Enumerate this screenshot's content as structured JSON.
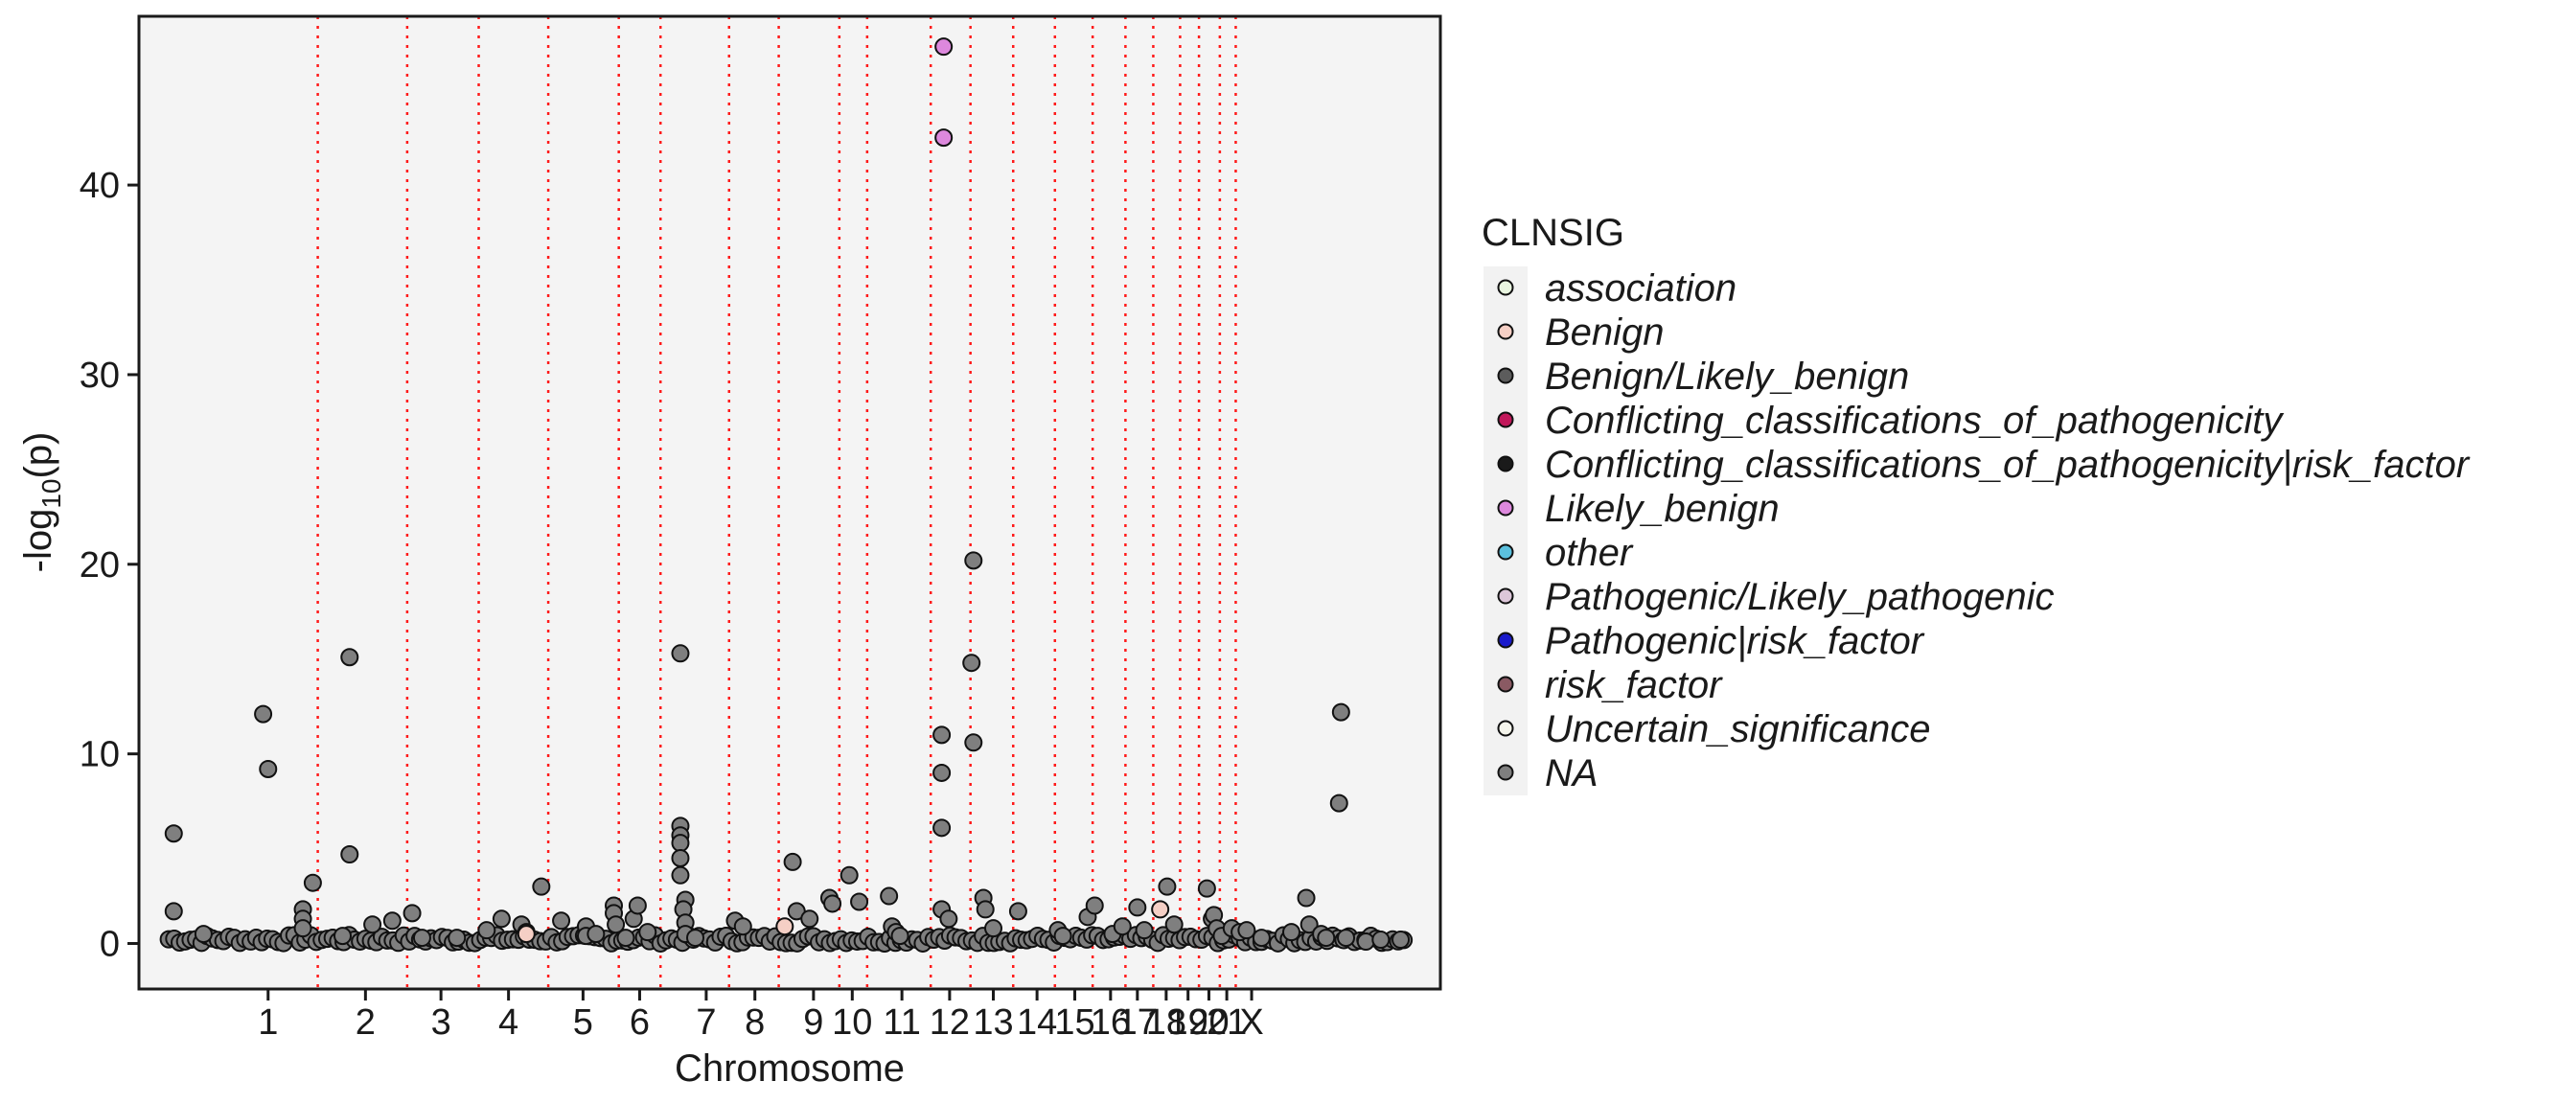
{
  "chart_data": {
    "type": "scatter",
    "title": "",
    "xlabel": "Chromosome",
    "ylabel_main": "-log",
    "ylabel_sub": "10",
    "ylabel_tail": "(p)",
    "ylim": [
      -2.4,
      48.9
    ],
    "yticks": [
      0,
      10,
      20,
      30,
      40
    ],
    "grid": false,
    "legend_position": "right",
    "chromosomes": [
      "1",
      "2",
      "3",
      "4",
      "5",
      "6",
      "7",
      "8",
      "9",
      "10",
      "11",
      "12",
      "13",
      "14",
      "15",
      "16",
      "17",
      "18",
      "19",
      "20",
      "21",
      "X"
    ],
    "chromosome_label_pos": [
      1.0,
      1.98,
      2.74,
      3.42,
      4.17,
      4.74,
      5.41,
      5.9,
      6.49,
      6.88,
      7.38,
      7.86,
      8.3,
      8.74,
      9.12,
      9.48,
      9.75,
      10.04,
      10.26,
      10.47,
      10.65,
      10.9
    ],
    "chromosome_boundaries": [
      1.5,
      2.4,
      3.12,
      3.82,
      4.53,
      4.95,
      5.64,
      6.14,
      6.75,
      7.03,
      7.67,
      8.07,
      8.5,
      8.92,
      9.3,
      9.63,
      9.91,
      10.18,
      10.37,
      10.58,
      10.74
    ],
    "legend": {
      "title": "CLNSIG",
      "entries": [
        {
          "label": "association",
          "color": "#e9f5e0"
        },
        {
          "label": "Benign",
          "color": "#f5cfc5"
        },
        {
          "label": "Benign/Likely_benign",
          "color": "#5c5c5c"
        },
        {
          "label": "Conflicting_classifications_of_pathogenicity",
          "color": "#c2185b"
        },
        {
          "label": "Conflicting_classifications_of_pathogenicity|risk_factor",
          "color": "#1a1a1a"
        },
        {
          "label": "Likely_benign",
          "color": "#dd88dd"
        },
        {
          "label": "other",
          "color": "#5bc0de"
        },
        {
          "label": "Pathogenic/Likely_pathogenic",
          "color": "#dcc6d9"
        },
        {
          "label": "Pathogenic|risk_factor",
          "color": "#1a1acc"
        },
        {
          "label": "risk_factor",
          "color": "#8a5a63"
        },
        {
          "label": "Uncertain_significance",
          "color": "#f5f5ec"
        },
        {
          "label": "NA",
          "color": "#7f7f7f"
        }
      ]
    },
    "series": [
      {
        "name": "NA",
        "color": "#7f7f7f",
        "points": [
          [
            0.05,
            5.8
          ],
          [
            0.05,
            1.7
          ],
          [
            0.35,
            0.5
          ],
          [
            0.95,
            12.1
          ],
          [
            1.0,
            9.2
          ],
          [
            1.35,
            1.8
          ],
          [
            1.35,
            1.3
          ],
          [
            1.35,
            0.8
          ],
          [
            1.82,
            15.1
          ],
          [
            1.82,
            4.7
          ],
          [
            1.45,
            3.2
          ],
          [
            1.75,
            0.4
          ],
          [
            2.05,
            1.0
          ],
          [
            2.25,
            1.2
          ],
          [
            2.45,
            1.6
          ],
          [
            2.55,
            0.3
          ],
          [
            2.9,
            0.3
          ],
          [
            3.2,
            0.7
          ],
          [
            3.35,
            1.3
          ],
          [
            3.55,
            1.0
          ],
          [
            3.6,
            0.6
          ],
          [
            3.75,
            3.0
          ],
          [
            3.95,
            1.2
          ],
          [
            4.2,
            0.9
          ],
          [
            4.2,
            0.4
          ],
          [
            4.3,
            0.5
          ],
          [
            4.48,
            2.0
          ],
          [
            4.48,
            1.6
          ],
          [
            4.5,
            1.0
          ],
          [
            4.6,
            0.3
          ],
          [
            4.68,
            1.3
          ],
          [
            4.72,
            2.0
          ],
          [
            4.82,
            0.6
          ],
          [
            5.15,
            15.3
          ],
          [
            5.15,
            6.2
          ],
          [
            5.15,
            5.7
          ],
          [
            5.15,
            5.3
          ],
          [
            5.15,
            4.5
          ],
          [
            5.15,
            3.6
          ],
          [
            5.2,
            2.3
          ],
          [
            5.18,
            1.8
          ],
          [
            5.2,
            1.1
          ],
          [
            5.2,
            0.5
          ],
          [
            5.3,
            0.3
          ],
          [
            5.7,
            1.2
          ],
          [
            5.78,
            0.9
          ],
          [
            6.28,
            4.3
          ],
          [
            6.32,
            1.7
          ],
          [
            6.45,
            1.3
          ],
          [
            6.65,
            2.4
          ],
          [
            6.68,
            2.1
          ],
          [
            6.85,
            3.6
          ],
          [
            6.95,
            2.2
          ],
          [
            7.25,
            2.5
          ],
          [
            7.28,
            0.9
          ],
          [
            7.32,
            0.6
          ],
          [
            7.36,
            0.4
          ],
          [
            7.78,
            11.0
          ],
          [
            7.78,
            9.0
          ],
          [
            7.78,
            6.1
          ],
          [
            7.78,
            1.8
          ],
          [
            7.85,
            1.3
          ],
          [
            8.1,
            20.2
          ],
          [
            8.08,
            14.8
          ],
          [
            8.1,
            10.6
          ],
          [
            8.2,
            2.4
          ],
          [
            8.22,
            1.8
          ],
          [
            8.3,
            0.8
          ],
          [
            8.55,
            1.7
          ],
          [
            8.95,
            0.7
          ],
          [
            9.0,
            0.4
          ],
          [
            9.25,
            1.4
          ],
          [
            9.32,
            2.0
          ],
          [
            9.5,
            0.5
          ],
          [
            9.6,
            0.9
          ],
          [
            9.75,
            1.9
          ],
          [
            9.82,
            0.7
          ],
          [
            10.05,
            3.0
          ],
          [
            10.12,
            1.0
          ],
          [
            10.45,
            2.9
          ],
          [
            10.5,
            1.3
          ],
          [
            10.52,
            1.5
          ],
          [
            10.55,
            0.8
          ],
          [
            10.6,
            0.4
          ],
          [
            10.7,
            0.8
          ],
          [
            10.78,
            0.6
          ],
          [
            10.85,
            0.7
          ],
          [
            11.0,
            0.3
          ],
          [
            11.3,
            0.6
          ],
          [
            11.45,
            2.4
          ],
          [
            11.48,
            1.0
          ],
          [
            11.6,
            0.5
          ],
          [
            11.65,
            0.3
          ],
          [
            11.8,
            12.2
          ],
          [
            11.78,
            7.4
          ],
          [
            11.85,
            0.3
          ],
          [
            12.05,
            0.1
          ],
          [
            12.2,
            0.2
          ],
          [
            12.4,
            0.2
          ]
        ]
      },
      {
        "name": "Likely_benign",
        "color": "#dd88dd",
        "points": [
          [
            7.8,
            47.3
          ],
          [
            7.8,
            42.5
          ]
        ]
      },
      {
        "name": "Benign",
        "color": "#f5cfc5",
        "points": [
          [
            9.98,
            1.8
          ],
          [
            6.2,
            0.9
          ],
          [
            3.6,
            0.5
          ]
        ]
      }
    ]
  }
}
